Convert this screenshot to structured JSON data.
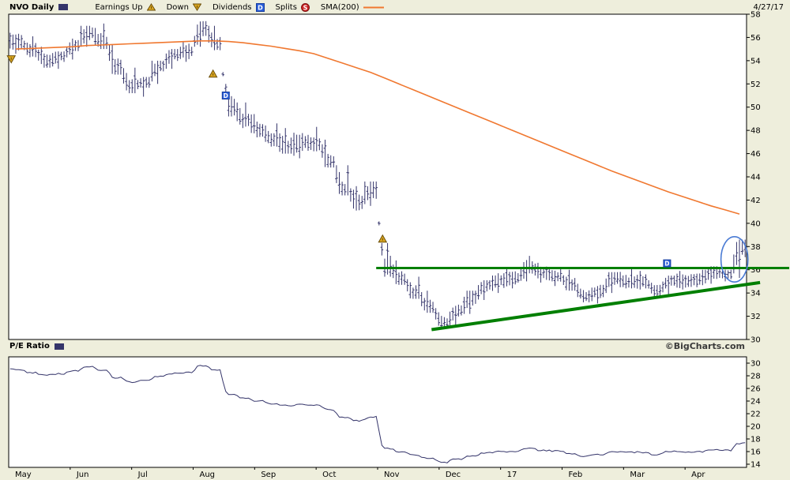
{
  "header": {
    "symbol": "NVO Daily",
    "date": "4/27/17",
    "legend": [
      {
        "label": "Earnings Up",
        "icon": "earnings-up-triangle"
      },
      {
        "label": "Down",
        "icon": "earnings-down-triangle"
      },
      {
        "label": "Dividends",
        "icon": "dividend-box"
      },
      {
        "label": "Splits",
        "icon": "splits-circle"
      },
      {
        "label": "SMA(200)",
        "icon": "sma-line"
      }
    ]
  },
  "pe_panel_label": "P/E Ratio",
  "watermark": "©BigCharts.com",
  "icons": {
    "dividend_letter": "D",
    "splits_letter": "S"
  },
  "colors": {
    "background": "#EEEEDC",
    "plot_bg": "#FFFFFF",
    "border": "#000000",
    "price": "#34346A",
    "sma": "#F07830",
    "trend_green": "#007F00",
    "ellipse": "#4A7BD4",
    "dividend": "#2B5FD9",
    "dividend_border": "#173E9E",
    "earnings": "#D9A520",
    "earnings_border": "#6B4F0A",
    "splits": "#CC2222",
    "splits_border": "#7A1414",
    "text": "#000000"
  },
  "chart_data": [
    {
      "type": "ohlc",
      "symbol": "NVO",
      "timeframe": "Daily",
      "as_of": "4/27/17",
      "x_months": [
        "May",
        "Jun",
        "Jul",
        "Aug",
        "Sep",
        "Oct",
        "Nov",
        "Dec",
        "17",
        "Feb",
        "Mar",
        "Apr"
      ],
      "ylim": [
        30,
        58
      ],
      "yticks": [
        58,
        56,
        54,
        52,
        50,
        48,
        46,
        44,
        42,
        40,
        38,
        36,
        34,
        32,
        30
      ],
      "weekly_bars": [
        [
          56.4,
          54.6,
          55.6
        ],
        [
          56.1,
          54.3,
          54.8
        ],
        [
          55.2,
          53.4,
          53.9
        ],
        [
          54.8,
          53.3,
          54.4
        ],
        [
          55.9,
          54.1,
          55.3
        ],
        [
          57.0,
          55.2,
          56.4
        ],
        [
          57.2,
          55.0,
          55.5
        ],
        [
          55.4,
          52.8,
          53.2
        ],
        [
          53.4,
          51.2,
          51.8
        ],
        [
          52.6,
          50.9,
          52.2
        ],
        [
          54.0,
          52.0,
          53.6
        ],
        [
          55.0,
          53.3,
          54.6
        ],
        [
          55.6,
          53.9,
          54.8
        ],
        [
          57.4,
          55.2,
          56.8
        ],
        [
          57.0,
          54.9,
          55.4
        ],
        [
          52.0,
          49.2,
          50.0
        ],
        [
          50.4,
          48.2,
          48.9
        ],
        [
          49.4,
          47.4,
          48.0
        ],
        [
          48.6,
          46.6,
          47.2
        ],
        [
          48.2,
          46.0,
          46.5
        ],
        [
          47.8,
          45.6,
          47.0
        ],
        [
          48.3,
          46.2,
          46.8
        ],
        [
          47.2,
          44.8,
          45.2
        ],
        [
          45.0,
          42.4,
          42.8
        ],
        [
          43.2,
          41.1,
          41.8
        ],
        [
          43.6,
          41.5,
          42.9
        ],
        [
          38.3,
          35.4,
          36.3
        ],
        [
          36.8,
          34.7,
          35.1
        ],
        [
          35.4,
          33.5,
          33.9
        ],
        [
          34.2,
          32.3,
          32.7
        ],
        [
          32.7,
          30.9,
          31.4
        ],
        [
          33.0,
          31.2,
          32.5
        ],
        [
          34.2,
          32.2,
          33.7
        ],
        [
          35.1,
          33.4,
          34.7
        ],
        [
          35.7,
          34.0,
          35.1
        ],
        [
          36.1,
          34.4,
          35.3
        ],
        [
          37.2,
          35.0,
          36.2
        ],
        [
          36.6,
          34.9,
          35.7
        ],
        [
          36.2,
          34.6,
          35.4
        ],
        [
          36.0,
          34.2,
          34.6
        ],
        [
          34.8,
          33.2,
          33.7
        ],
        [
          34.7,
          33.1,
          34.2
        ],
        [
          35.8,
          34.0,
          35.3
        ],
        [
          36.1,
          34.4,
          34.9
        ],
        [
          35.9,
          34.3,
          35.0
        ],
        [
          35.1,
          33.7,
          34.2
        ],
        [
          35.5,
          33.9,
          35.1
        ],
        [
          35.9,
          34.3,
          35.0
        ],
        [
          36.0,
          34.5,
          35.2
        ],
        [
          36.3,
          34.8,
          35.8
        ],
        [
          36.2,
          35.0,
          35.6
        ],
        [
          38.6,
          35.3,
          38.1
        ]
      ],
      "sma200": [
        55.0,
        55.05,
        55.1,
        55.15,
        55.2,
        55.3,
        55.35,
        55.4,
        55.45,
        55.5,
        55.55,
        55.6,
        55.65,
        55.7,
        55.7,
        55.65,
        55.55,
        55.4,
        55.25,
        55.05,
        54.85,
        54.6,
        54.2,
        53.8,
        53.4,
        53.0,
        52.5,
        52.0,
        51.5,
        51.0,
        50.5,
        50.0,
        49.5,
        49.0,
        48.5,
        48.0,
        47.5,
        47.0,
        46.5,
        46.0,
        45.5,
        45.0,
        44.5,
        44.05,
        43.6,
        43.15,
        42.7,
        42.3,
        41.9,
        41.5,
        41.15,
        40.8
      ],
      "overlays": {
        "resistance_line": {
          "price": 36.15,
          "from_week": 25.9,
          "extend_to_right_edge": true
        },
        "support_trendline": {
          "from": {
            "week": 29.8,
            "price": 30.85
          },
          "to": {
            "week": 52.95,
            "price": 34.9
          }
        },
        "highlight_ellipse": {
          "center_week": 51.15,
          "center_price": 36.9,
          "radius_weeks": 0.95,
          "radius_price": 1.95
        },
        "markers": [
          {
            "type": "earnings-down",
            "week": 0.18,
            "price": 54.15
          },
          {
            "type": "earnings-up",
            "week": 14.4,
            "price": 52.85
          },
          {
            "type": "dividend",
            "week": 15.3,
            "price": 51.0
          },
          {
            "type": "earnings-up",
            "week": 26.35,
            "price": 38.65
          },
          {
            "type": "dividend",
            "week": 46.4,
            "price": 36.55
          }
        ]
      }
    },
    {
      "type": "line",
      "label": "P/E Ratio",
      "ylim": [
        13.5,
        31
      ],
      "yticks": [
        30,
        28,
        26,
        24,
        22,
        20,
        18,
        16,
        14
      ],
      "weekly_values": [
        29.0,
        28.5,
        28.1,
        28.3,
        28.8,
        29.4,
        28.9,
        27.7,
        27.0,
        27.2,
        27.9,
        28.4,
        28.5,
        29.6,
        28.9,
        25.0,
        24.5,
        24.0,
        23.6,
        23.3,
        23.5,
        23.4,
        22.6,
        21.4,
        20.9,
        21.5,
        16.5,
        16.0,
        15.4,
        14.9,
        14.3,
        14.8,
        15.3,
        15.8,
        16.0,
        16.0,
        16.5,
        16.2,
        16.1,
        15.7,
        15.3,
        15.5,
        16.0,
        15.9,
        15.9,
        15.5,
        16.0,
        15.9,
        16.0,
        16.3,
        16.2,
        17.3
      ]
    }
  ]
}
